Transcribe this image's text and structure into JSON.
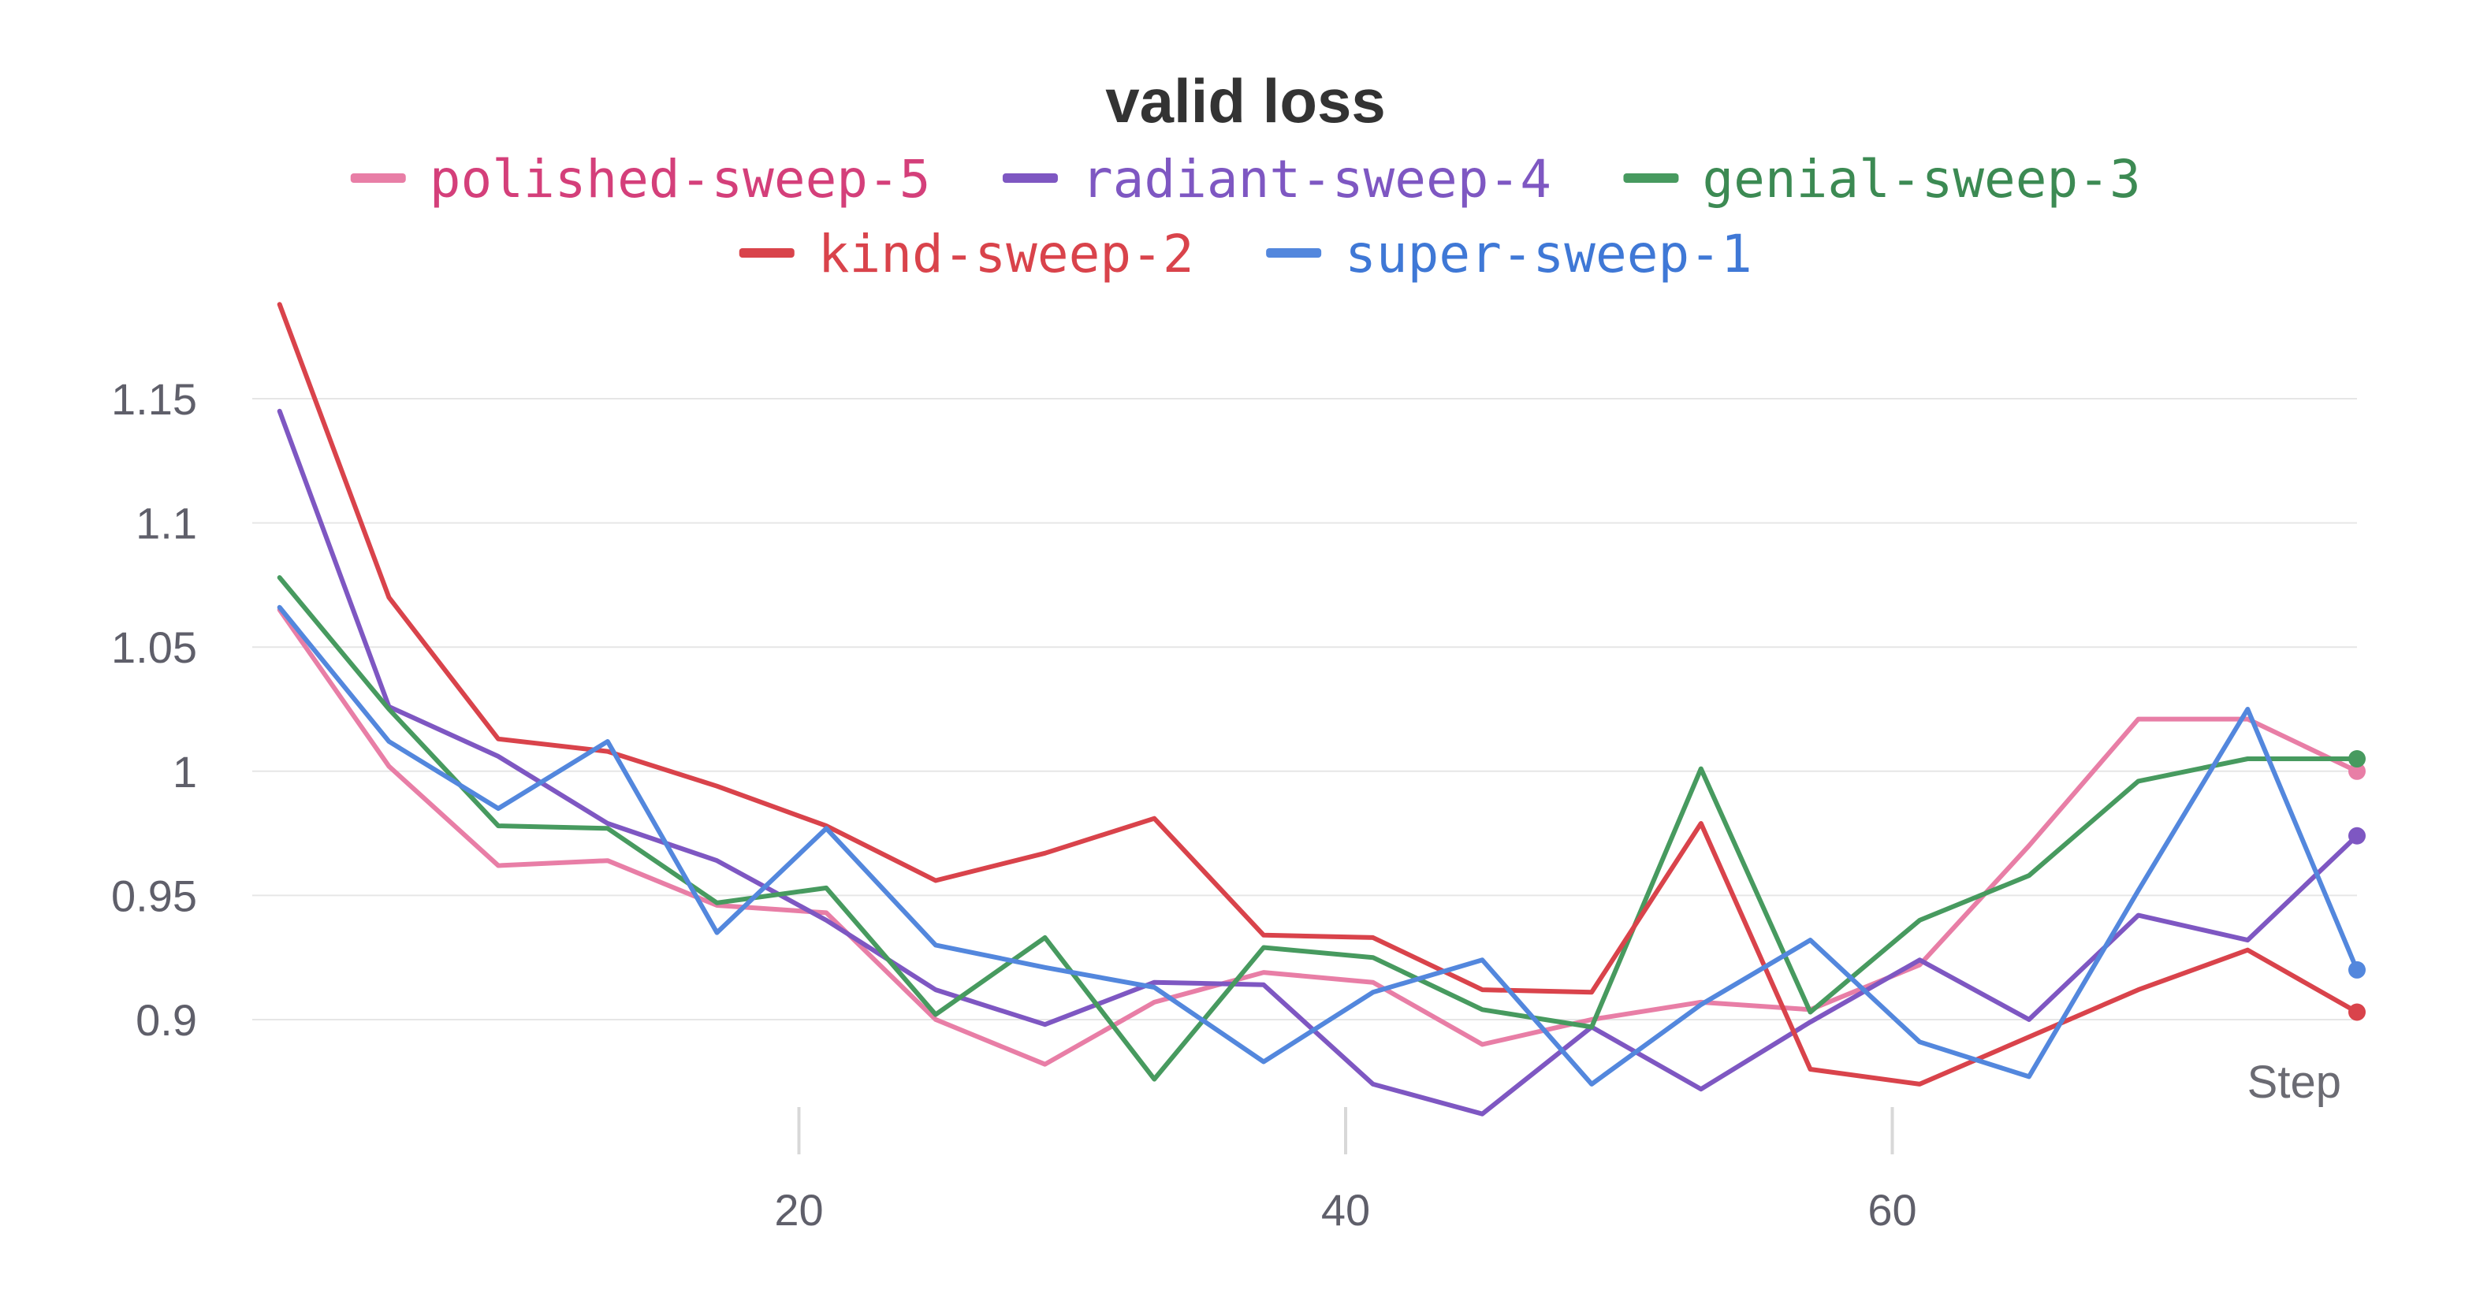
{
  "chart_data": {
    "type": "line",
    "title": "valid loss",
    "xlabel": "Step",
    "ylabel": "",
    "xlim": [
      0,
      77
    ],
    "ylim": [
      0.86,
      1.19
    ],
    "xticks": [
      20,
      40,
      60
    ],
    "xtick_labels": [
      "20",
      "40",
      "60"
    ],
    "yticks": [
      0.9,
      0.95,
      1,
      1.05,
      1.1,
      1.15
    ],
    "ytick_labels": [
      "0.9",
      "0.95",
      "1",
      "1.05",
      "1.1",
      "1.15"
    ],
    "grid": true,
    "legend_position": "top",
    "x": [
      1,
      5,
      9,
      13,
      17,
      21,
      25,
      29,
      33,
      37,
      41,
      45,
      49,
      53,
      57,
      61,
      65,
      69,
      73,
      77
    ],
    "series": [
      {
        "name": "polished-sweep-5",
        "color": "#e87ea6",
        "text_color": "#d43f7a",
        "values": [
          1.065,
          1.002,
          0.962,
          0.964,
          0.946,
          0.943,
          0.9,
          0.882,
          0.907,
          0.919,
          0.915,
          0.89,
          0.9,
          0.907,
          0.904,
          0.922,
          0.97,
          1.021,
          1.021,
          1.0
        ]
      },
      {
        "name": "radiant-sweep-4",
        "color": "#7e57c2",
        "text_color": "#7e57c2",
        "values": [
          1.145,
          1.026,
          1.006,
          0.979,
          0.964,
          0.94,
          0.912,
          0.898,
          0.915,
          0.914,
          0.874,
          0.862,
          0.897,
          0.872,
          0.899,
          0.924,
          0.9,
          0.942,
          0.932,
          0.974
        ]
      },
      {
        "name": "genial-sweep-3",
        "color": "#479a5f",
        "text_color": "#3c8a53",
        "values": [
          1.078,
          1.025,
          0.978,
          0.977,
          0.947,
          0.953,
          0.902,
          0.933,
          0.876,
          0.929,
          0.925,
          0.904,
          0.897,
          1.001,
          0.903,
          0.94,
          0.958,
          0.996,
          1.005,
          1.005
        ]
      },
      {
        "name": "kind-sweep-2",
        "color": "#d9434b",
        "text_color": "#d9434b",
        "values": [
          1.188,
          1.07,
          1.013,
          1.008,
          0.994,
          0.978,
          0.956,
          0.967,
          0.981,
          0.934,
          0.933,
          0.912,
          0.911,
          0.979,
          0.88,
          0.874,
          0.893,
          0.912,
          0.928,
          0.903
        ]
      },
      {
        "name": "super-sweep-1",
        "color": "#5387dd",
        "text_color": "#3f78d6",
        "values": [
          1.066,
          1.012,
          0.985,
          1.012,
          0.935,
          0.977,
          0.93,
          0.921,
          0.913,
          0.883,
          0.911,
          0.924,
          0.874,
          0.906,
          0.932,
          0.891,
          0.877,
          0.952,
          1.025,
          0.92
        ]
      }
    ]
  }
}
